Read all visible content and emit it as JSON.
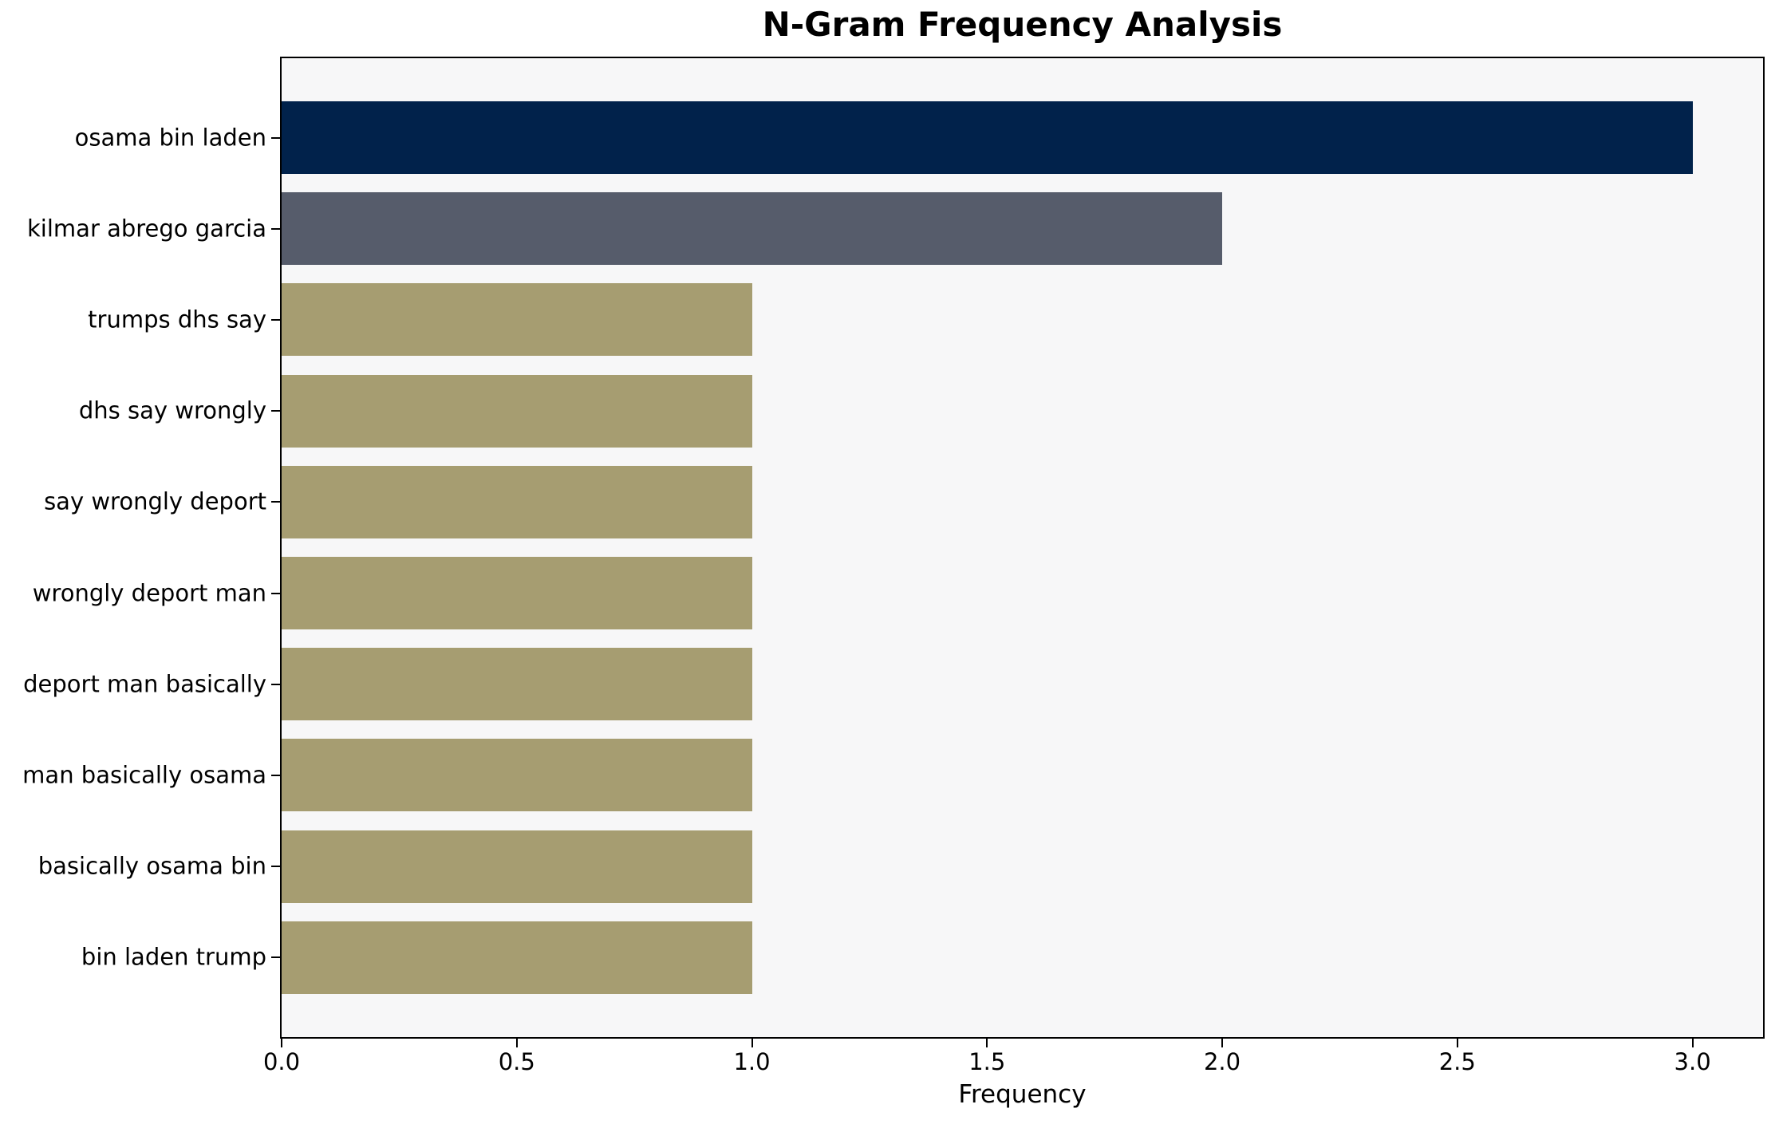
{
  "chart_data": {
    "type": "bar",
    "orientation": "horizontal",
    "title": "N-Gram Frequency Analysis",
    "xlabel": "Frequency",
    "ylabel": "",
    "categories": [
      "osama bin laden",
      "kilmar abrego garcia",
      "trumps dhs say",
      "dhs say wrongly",
      "say wrongly deport",
      "wrongly deport man",
      "deport man basically",
      "man basically osama",
      "basically osama bin",
      "bin laden trump"
    ],
    "values": [
      3,
      2,
      1,
      1,
      1,
      1,
      1,
      1,
      1,
      1
    ],
    "bar_colors": [
      "#01224b",
      "#565c6b",
      "#a69d71",
      "#a69d71",
      "#a69d71",
      "#a69d71",
      "#a69d71",
      "#a69d71",
      "#a69d71",
      "#a69d71"
    ],
    "xlim": [
      0,
      3.15
    ],
    "xticks": [
      0,
      0.5,
      1,
      1.5,
      2,
      2.5,
      3
    ],
    "xtick_labels": [
      "0.0",
      "0.5",
      "1.0",
      "1.5",
      "2.0",
      "2.5",
      "3.0"
    ],
    "grid": false,
    "legend": null,
    "colors": {
      "plot_background": "#f7f7f8",
      "figure_background": "#ffffff",
      "axis": "#000000",
      "text": "#000000"
    }
  }
}
